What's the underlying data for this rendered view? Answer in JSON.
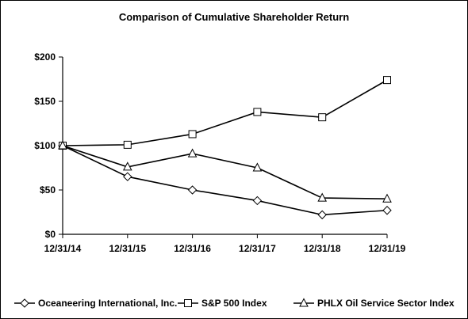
{
  "chart_data": {
    "type": "line",
    "title": "Comparison of Cumulative Shareholder Return",
    "xlabel": "",
    "ylabel": "",
    "categories": [
      "12/31/14",
      "12/31/15",
      "12/31/16",
      "12/31/17",
      "12/31/18",
      "12/31/19"
    ],
    "y_tick_labels": [
      "$0",
      "$50",
      "$100",
      "$150",
      "$200"
    ],
    "y_ticks": [
      0,
      50,
      100,
      150,
      200
    ],
    "ylim": [
      0,
      200
    ],
    "grid": false,
    "legend_position": "bottom",
    "series": [
      {
        "name": "Oceaneering International, Inc.",
        "marker": "diamond",
        "values": [
          100,
          65,
          50,
          38,
          22,
          27
        ]
      },
      {
        "name": "S&P 500 Index",
        "marker": "square",
        "values": [
          100,
          101,
          113,
          138,
          132,
          174
        ]
      },
      {
        "name": "PHLX Oil Service Sector Index",
        "marker": "triangle",
        "values": [
          100,
          76,
          91,
          75,
          41,
          40
        ]
      }
    ]
  }
}
